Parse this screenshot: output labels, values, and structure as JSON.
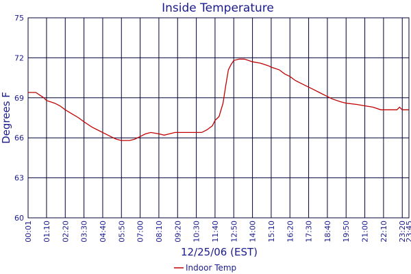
{
  "chart_data": {
    "type": "line",
    "title": "Inside Temperature",
    "xlabel": "12/25/06 (EST)",
    "ylabel": "Degrees F",
    "ylim": [
      60,
      75
    ],
    "yticks": [
      60,
      63,
      66,
      69,
      72,
      75
    ],
    "xlim": [
      "00:01",
      "23:45"
    ],
    "xticks": [
      "00:01",
      "01:10",
      "02:20",
      "03:30",
      "04:40",
      "05:50",
      "07:00",
      "08:10",
      "09:20",
      "10:30",
      "11:40",
      "12:50",
      "14:00",
      "15:10",
      "16:20",
      "17:30",
      "18:40",
      "19:50",
      "21:00",
      "22:10",
      "23:20",
      "23:45"
    ],
    "grid": true,
    "legend": "bottom-center",
    "colors": {
      "line": "#c00000",
      "grid": "#000033",
      "text": "#1a1a8c"
    },
    "series": [
      {
        "name": "Indoor Temp",
        "x": [
          "00:01",
          "00:30",
          "00:45",
          "01:00",
          "01:10",
          "01:40",
          "02:00",
          "02:20",
          "02:45",
          "03:10",
          "03:30",
          "04:00",
          "04:20",
          "04:40",
          "05:10",
          "05:30",
          "05:50",
          "06:20",
          "06:40",
          "07:00",
          "07:20",
          "07:40",
          "08:10",
          "08:30",
          "08:50",
          "09:10",
          "09:20",
          "10:00",
          "10:30",
          "10:50",
          "11:10",
          "11:30",
          "11:40",
          "11:55",
          "12:10",
          "12:20",
          "12:30",
          "12:40",
          "12:50",
          "13:10",
          "13:30",
          "14:00",
          "14:30",
          "15:00",
          "15:10",
          "15:40",
          "16:00",
          "16:20",
          "16:40",
          "17:00",
          "17:30",
          "17:50",
          "18:10",
          "18:40",
          "19:00",
          "19:30",
          "19:50",
          "20:30",
          "21:00",
          "21:30",
          "22:00",
          "22:10",
          "22:30",
          "23:00",
          "23:10",
          "23:20",
          "23:30",
          "23:45"
        ],
        "values": [
          69.4,
          69.4,
          69.2,
          69.0,
          68.8,
          68.6,
          68.4,
          68.1,
          67.8,
          67.5,
          67.2,
          66.8,
          66.6,
          66.4,
          66.1,
          65.9,
          65.8,
          65.8,
          65.9,
          66.1,
          66.3,
          66.4,
          66.3,
          66.2,
          66.3,
          66.4,
          66.4,
          66.4,
          66.4,
          66.4,
          66.6,
          66.9,
          67.3,
          67.6,
          68.6,
          69.9,
          71.1,
          71.5,
          71.8,
          71.9,
          71.9,
          71.7,
          71.6,
          71.4,
          71.3,
          71.1,
          70.8,
          70.6,
          70.3,
          70.1,
          69.8,
          69.6,
          69.4,
          69.1,
          68.9,
          68.7,
          68.6,
          68.5,
          68.4,
          68.3,
          68.1,
          68.1,
          68.1,
          68.1,
          68.3,
          68.1,
          68.1,
          68.1
        ]
      }
    ]
  }
}
